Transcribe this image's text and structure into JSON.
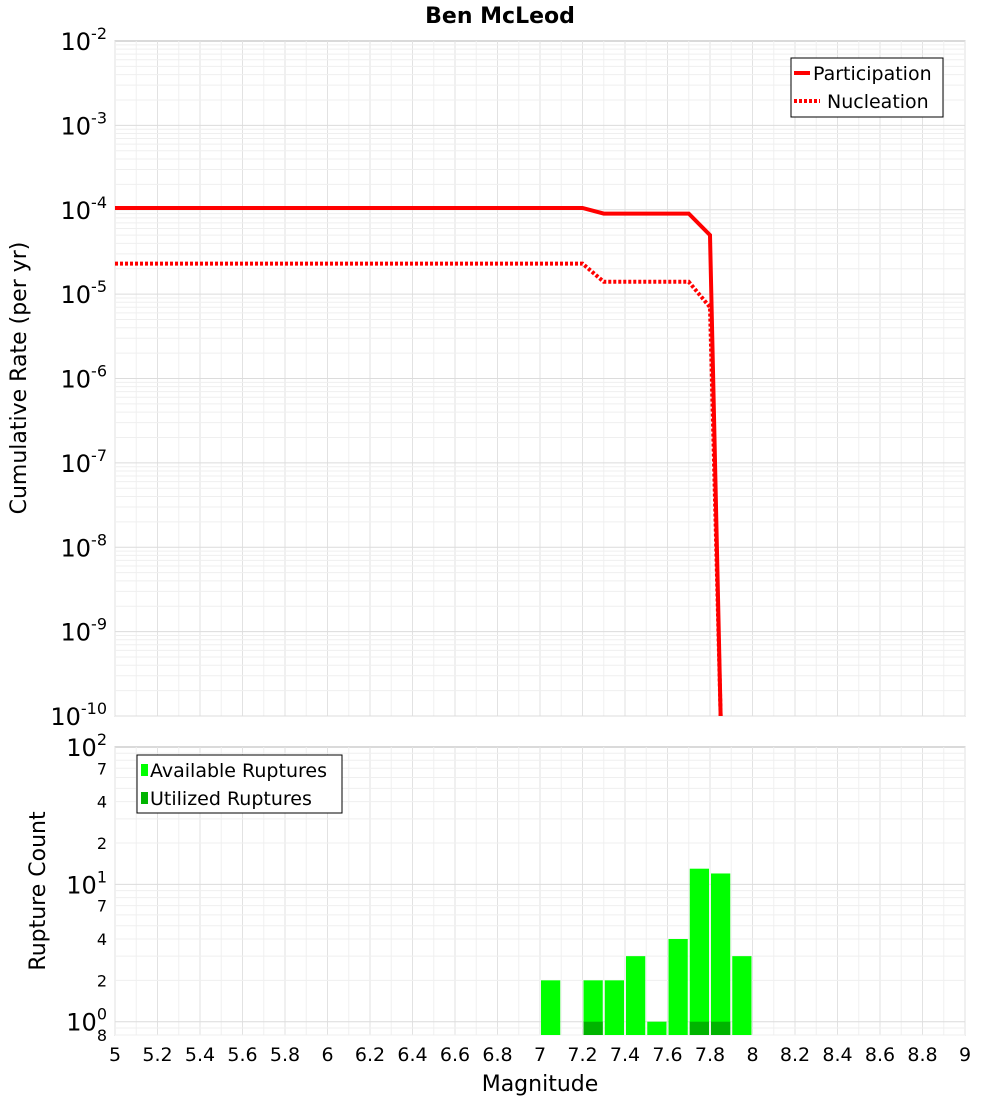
{
  "title": "Ben McLeod",
  "chart_data": [
    {
      "type": "line",
      "ylabel": "Cumulative Rate (per yr)",
      "yscale": "log",
      "ylim_exp": [
        -10,
        -2
      ],
      "xlim": [
        5,
        9
      ],
      "grid": true,
      "legend_placement": "top-right",
      "y_tick_labels": [
        {
          "base": "10",
          "exp": "-2"
        },
        {
          "base": "10",
          "exp": "-3"
        },
        {
          "base": "10",
          "exp": "-4"
        },
        {
          "base": "10",
          "exp": "-5"
        },
        {
          "base": "10",
          "exp": "-6"
        },
        {
          "base": "10",
          "exp": "-7"
        },
        {
          "base": "10",
          "exp": "-8"
        },
        {
          "base": "10",
          "exp": "-9"
        },
        {
          "base": "10",
          "exp": "-10"
        }
      ],
      "series": [
        {
          "name": "Participation",
          "color": "#ff0000",
          "style": "solid",
          "x": [
            5.0,
            7.2,
            7.3,
            7.7,
            7.8,
            7.85
          ],
          "y": [
            0.000105,
            0.000105,
            9e-05,
            9e-05,
            5e-05,
            1e-10
          ]
        },
        {
          "name": "Nucleation",
          "color": "#ff0000",
          "style": "dotted",
          "x": [
            5.0,
            7.2,
            7.3,
            7.7,
            7.8,
            7.85
          ],
          "y": [
            2.3e-05,
            2.3e-05,
            1.4e-05,
            1.4e-05,
            7e-06,
            1e-10
          ]
        }
      ]
    },
    {
      "type": "bar",
      "ylabel": "Rupture Count",
      "xlabel": "Magnitude",
      "yscale": "log",
      "ylim": [
        0.8,
        100
      ],
      "xlim": [
        5,
        9
      ],
      "grid": true,
      "legend_placement": "top-left",
      "x_ticks": [
        "5",
        "5.2",
        "5.4",
        "5.6",
        "5.8",
        "6",
        "6.2",
        "6.4",
        "6.6",
        "6.8",
        "7",
        "7.2",
        "7.4",
        "7.6",
        "7.8",
        "8",
        "8.2",
        "8.4",
        "8.6",
        "8.8",
        "9"
      ],
      "y_tick_labels": [
        {
          "text": "10",
          "sup": "2",
          "major": true
        },
        {
          "text": "7",
          "sup": "",
          "major": false
        },
        {
          "text": "4",
          "sup": "",
          "major": false
        },
        {
          "text": "2",
          "sup": "",
          "major": false
        },
        {
          "text": "10",
          "sup": "1",
          "major": true
        },
        {
          "text": "7",
          "sup": "",
          "major": false
        },
        {
          "text": "4",
          "sup": "",
          "major": false
        },
        {
          "text": "2",
          "sup": "",
          "major": false
        },
        {
          "text": "10",
          "sup": "0",
          "major": true
        },
        {
          "text": "8",
          "sup": "",
          "major": false
        }
      ],
      "bin_width": 0.1,
      "series": [
        {
          "name": "Available Ruptures",
          "color": "#00ff00",
          "x": [
            7.05,
            7.25,
            7.35,
            7.45,
            7.55,
            7.65,
            7.75,
            7.85,
            7.95
          ],
          "values": [
            2,
            2,
            2,
            3,
            1,
            4,
            13,
            12,
            3
          ]
        },
        {
          "name": "Utilized Ruptures",
          "color": "#00b400",
          "x": [
            7.25,
            7.75,
            7.85
          ],
          "values": [
            1,
            1,
            1
          ]
        }
      ]
    }
  ]
}
